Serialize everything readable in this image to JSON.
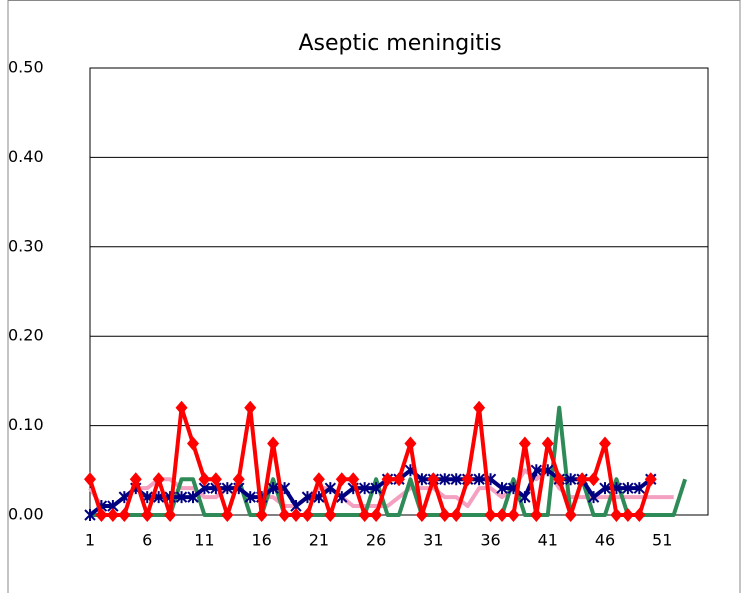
{
  "chart_data": {
    "type": "line",
    "title": "Aseptic meningitis",
    "categories": [
      "1",
      null,
      null,
      null,
      null,
      "6",
      null,
      null,
      null,
      null,
      "11",
      null,
      null,
      null,
      null,
      "16",
      null,
      null,
      null,
      null,
      "21",
      null,
      null,
      null,
      null,
      "26",
      null,
      null,
      null,
      null,
      "31",
      null,
      null,
      null,
      null,
      "36",
      null,
      null,
      null,
      null,
      "41",
      null,
      null,
      null,
      null,
      "46",
      null,
      null,
      null,
      null,
      "51",
      null,
      null,
      null,
      null
    ],
    "ylim": [
      0,
      0.5
    ],
    "yticks": [
      {
        "value": 0,
        "label": "0.00"
      },
      {
        "value": 0.1,
        "label": "0.10"
      },
      {
        "value": 0.2,
        "label": "0.20"
      },
      {
        "value": 0.3,
        "label": "0.30"
      },
      {
        "value": 0.4,
        "label": "0.40"
      },
      {
        "value": 0.5,
        "label": "0.50"
      }
    ],
    "grid": true,
    "series": [
      {
        "color": "#f4a0c0",
        "marker": "none",
        "values": [
          0.03,
          0.01,
          0.01,
          0.02,
          0.03,
          0.03,
          0.04,
          0.04,
          0.03,
          0.03,
          0.02,
          0.02,
          0.03,
          0.03,
          0.02,
          0.02,
          0.02,
          0.01,
          0.01,
          0.02,
          0.03,
          0.03,
          0.02,
          0.01,
          0.01,
          0.01,
          0.01,
          0.02,
          0.03,
          0.03,
          0.03,
          0.02,
          0.02,
          0.01,
          0.03,
          0.03,
          0.02,
          0.03,
          0.05,
          0.04,
          0.05,
          0.03,
          0.02,
          0.02,
          0.02,
          0.02,
          0.02,
          0.02,
          0.02,
          0.02,
          0.02,
          0.02,
          null,
          null,
          null
        ]
      },
      {
        "color": "#2e8b57",
        "marker": "none",
        "values": [
          0,
          0,
          0,
          0,
          0,
          0,
          0,
          0,
          0.04,
          0.04,
          0,
          0,
          0,
          0.04,
          0,
          0,
          0.04,
          0,
          0,
          0,
          0,
          0,
          0,
          0,
          0,
          0.04,
          0,
          0,
          0.04,
          0,
          0,
          0,
          0,
          0,
          0,
          0,
          0,
          0.04,
          0,
          0,
          0,
          0.12,
          0,
          0.04,
          0,
          0,
          0.04,
          0,
          0,
          0,
          0,
          0,
          0.04,
          null,
          null
        ]
      },
      {
        "color": "#000080",
        "marker": "star",
        "values": [
          0,
          0.01,
          0.01,
          0.02,
          0.03,
          0.02,
          0.02,
          0.02,
          0.02,
          0.02,
          0.03,
          0.03,
          0.03,
          0.03,
          0.02,
          0.02,
          0.03,
          0.03,
          0.01,
          0.02,
          0.02,
          0.03,
          0.02,
          0.03,
          0.03,
          0.03,
          0.04,
          0.04,
          0.05,
          0.04,
          0.04,
          0.04,
          0.04,
          0.04,
          0.04,
          0.04,
          0.03,
          0.03,
          0.02,
          0.05,
          0.05,
          0.04,
          0.04,
          0.04,
          0.02,
          0.03,
          0.03,
          0.03,
          0.03,
          0.04,
          null,
          null,
          null,
          null,
          null
        ]
      },
      {
        "color": "#ff0000",
        "marker": "diamond",
        "values": [
          0.04,
          0,
          0,
          0,
          0.04,
          0,
          0.04,
          0,
          0.12,
          0.08,
          0.04,
          0.04,
          0,
          0.04,
          0.12,
          0,
          0.08,
          0,
          0,
          0,
          0.04,
          0,
          0.04,
          0.04,
          0,
          0,
          0.04,
          0.04,
          0.08,
          0,
          0.04,
          0,
          0,
          0.04,
          0.12,
          0,
          0,
          0,
          0.08,
          0,
          0.08,
          0.04,
          0,
          0.04,
          0.04,
          0.08,
          0,
          0,
          0,
          0.04,
          null,
          null,
          null,
          null,
          null
        ]
      }
    ]
  }
}
